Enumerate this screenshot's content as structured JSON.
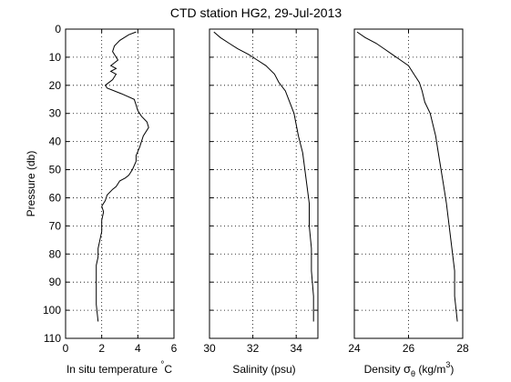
{
  "title": "CTD station HG2, 29-Jul-2013",
  "chart_data": [
    {
      "type": "line",
      "xlabel": "In situ temperature ",
      "xlabel_suffix": "C",
      "xlabel_degree": "°",
      "ylabel": "Pressure (db)",
      "xlim": [
        0,
        6
      ],
      "ylim": [
        0,
        110
      ],
      "y_reversed": true,
      "grid": true,
      "xticks": [
        "0",
        "2",
        "4",
        "6"
      ],
      "yticks": [
        "0",
        "10",
        "20",
        "30",
        "40",
        "50",
        "60",
        "70",
        "80",
        "90",
        "100",
        "110"
      ],
      "x": [
        3.9,
        3.5,
        3.0,
        2.7,
        2.6,
        2.8,
        2.9,
        2.7,
        2.5,
        2.8,
        2.5,
        2.8,
        2.6,
        2.4,
        2.2,
        2.3,
        3.1,
        3.8,
        3.9,
        4.0,
        4.2,
        4.5,
        4.6,
        4.3,
        4.1,
        3.9,
        3.9,
        3.7,
        3.5,
        3.3,
        3.0,
        2.8,
        2.6,
        2.3,
        2.2,
        2.0,
        2.1,
        2.0,
        2.0,
        1.9,
        1.8,
        1.8,
        1.7,
        1.7,
        1.7,
        1.8
      ],
      "y": [
        1,
        2,
        4,
        6,
        8,
        10,
        11,
        12,
        13,
        14,
        15,
        16,
        18,
        19,
        20,
        21,
        23,
        25,
        27,
        29,
        31,
        33,
        35,
        38,
        42,
        45,
        47,
        50,
        52,
        53,
        54,
        56,
        57,
        59,
        61,
        63,
        65,
        68,
        72,
        75,
        78,
        81,
        84,
        90,
        98,
        104
      ]
    },
    {
      "type": "line",
      "xlabel": "Salinity (psu)",
      "xlim": [
        30,
        35
      ],
      "ylim": [
        0,
        110
      ],
      "y_reversed": true,
      "grid": true,
      "xticks": [
        "30",
        "32",
        "34"
      ],
      "x": [
        30.2,
        30.5,
        30.9,
        31.3,
        31.8,
        32.2,
        32.6,
        33.0,
        33.2,
        33.5,
        33.7,
        33.9,
        34.0,
        34.1,
        34.3,
        34.4,
        34.5,
        34.6,
        34.6,
        34.7,
        34.7,
        34.8,
        34.8
      ],
      "y": [
        1,
        3,
        5,
        7,
        9,
        11,
        13,
        16,
        19,
        22,
        26,
        30,
        34,
        38,
        44,
        50,
        56,
        62,
        70,
        78,
        86,
        95,
        104
      ]
    },
    {
      "type": "line",
      "xlabel": "Density ",
      "xlabel_sigma": "σ",
      "xlabel_theta": "θ",
      "xlabel_units": " (kg/m",
      "xlabel_exp": "3",
      "xlabel_close": ")",
      "xlim": [
        24,
        28
      ],
      "ylim": [
        0,
        110
      ],
      "y_reversed": true,
      "grid": true,
      "xticks": [
        "24",
        "26",
        "28"
      ],
      "x": [
        24.1,
        24.4,
        24.8,
        25.1,
        25.4,
        25.7,
        26.0,
        26.2,
        26.4,
        26.5,
        26.6,
        26.8,
        26.9,
        27.0,
        27.1,
        27.2,
        27.3,
        27.4,
        27.5,
        27.6,
        27.7,
        27.7,
        27.8
      ],
      "y": [
        1,
        3,
        5,
        7,
        9,
        11,
        13,
        16,
        19,
        22,
        26,
        30,
        34,
        38,
        44,
        50,
        56,
        62,
        70,
        78,
        86,
        95,
        104
      ]
    }
  ]
}
